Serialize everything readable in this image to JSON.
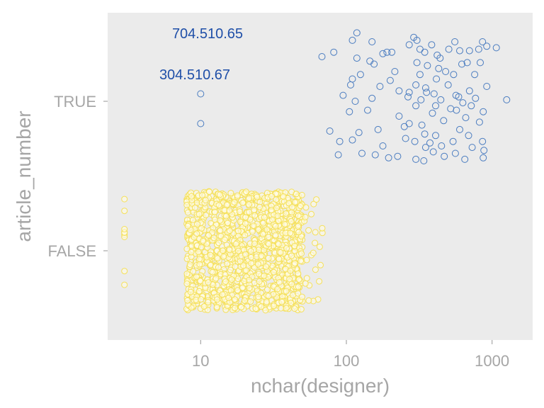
{
  "chart_data": {
    "type": "scatter",
    "xlabel": "nchar(designer)",
    "ylabel": "article_number",
    "x_scale": "log10",
    "xlim": [
      2.3,
      1900
    ],
    "x_ticks": [
      10,
      100,
      1000
    ],
    "x_tick_labels": [
      "10",
      "100",
      "1000"
    ],
    "categories": [
      "FALSE",
      "TRUE"
    ],
    "y_tick_labels": [
      "FALSE",
      "TRUE"
    ],
    "grid": false,
    "legend": "none",
    "colors": {
      "panel": "#ebebeb",
      "true_points": "#4a7cc0",
      "false_points": "#f5e05a",
      "annotation": "#1f4fa8",
      "axis_text": "#a6a6a6"
    },
    "annotations": [
      {
        "text": "704.510.65",
        "x": 10,
        "category": "TRUE"
      },
      {
        "text": "304.510.67",
        "x": 10,
        "category": "TRUE"
      }
    ],
    "series": [
      {
        "category": "TRUE",
        "points": [
          [
            10,
            0.05
          ],
          [
            10,
            -0.15
          ],
          [
            68,
            0.3
          ],
          [
            82,
            0.33
          ],
          [
            110,
            0.41
          ],
          [
            118,
            0.46
          ],
          [
            150,
            0.4
          ],
          [
            178,
            0.32
          ],
          [
            190,
            0.33
          ],
          [
            205,
            0.33
          ],
          [
            270,
            0.38
          ],
          [
            290,
            0.43
          ],
          [
            305,
            0.41
          ],
          [
            320,
            0.35
          ],
          [
            345,
            0.33
          ],
          [
            385,
            0.38
          ],
          [
            420,
            0.31
          ],
          [
            505,
            0.35
          ],
          [
            555,
            0.4
          ],
          [
            600,
            0.34
          ],
          [
            700,
            0.34
          ],
          [
            810,
            0.35
          ],
          [
            860,
            0.4
          ],
          [
            920,
            0.37
          ],
          [
            1070,
            0.36
          ],
          [
            118,
            0.29
          ],
          [
            145,
            0.27
          ],
          [
            215,
            0.2
          ],
          [
            320,
            0.18
          ],
          [
            305,
            0.26
          ],
          [
            360,
            0.24
          ],
          [
            430,
            0.22
          ],
          [
            440,
            0.29
          ],
          [
            480,
            0.2
          ],
          [
            545,
            0.18
          ],
          [
            620,
            0.25
          ],
          [
            675,
            0.26
          ],
          [
            760,
            0.18
          ],
          [
            830,
            0.26
          ],
          [
            110,
            0.15
          ],
          [
            125,
            0.18
          ],
          [
            170,
            0.1
          ],
          [
            200,
            0.14
          ],
          [
            230,
            0.07
          ],
          [
            270,
            0.06
          ],
          [
            300,
            0.11
          ],
          [
            355,
            0.06
          ],
          [
            400,
            0.05
          ],
          [
            500,
            0.11
          ],
          [
            590,
            0.03
          ],
          [
            700,
            0.07
          ],
          [
            770,
            0.02
          ],
          [
            920,
            0.1
          ],
          [
            1260,
            0.01
          ],
          [
            95,
            0.04
          ],
          [
            107,
            0.11
          ],
          [
            115,
            0.0
          ],
          [
            150,
            0.02
          ],
          [
            265,
            0.03
          ],
          [
            325,
            0.01
          ],
          [
            410,
            -0.03
          ],
          [
            445,
            0.01
          ],
          [
            520,
            -0.05
          ],
          [
            565,
            0.04
          ],
          [
            630,
            -0.01
          ],
          [
            105,
            -0.07
          ],
          [
            140,
            -0.06
          ],
          [
            230,
            -0.1
          ],
          [
            270,
            -0.15
          ],
          [
            330,
            -0.16
          ],
          [
            390,
            -0.08
          ],
          [
            465,
            -0.13
          ],
          [
            570,
            -0.06
          ],
          [
            660,
            -0.11
          ],
          [
            720,
            -0.03
          ],
          [
            820,
            -0.14
          ],
          [
            870,
            -0.07
          ],
          [
            77,
            -0.2
          ],
          [
            90,
            -0.27
          ],
          [
            110,
            -0.26
          ],
          [
            122,
            -0.21
          ],
          [
            165,
            -0.19
          ],
          [
            178,
            -0.3
          ],
          [
            255,
            -0.25
          ],
          [
            295,
            -0.27
          ],
          [
            350,
            -0.31
          ],
          [
            375,
            -0.28
          ],
          [
            410,
            -0.23
          ],
          [
            450,
            -0.3
          ],
          [
            540,
            -0.27
          ],
          [
            600,
            -0.19
          ],
          [
            690,
            -0.23
          ],
          [
            730,
            -0.31
          ],
          [
            860,
            -0.27
          ],
          [
            880,
            -0.33
          ],
          [
            88,
            -0.36
          ],
          [
            128,
            -0.35
          ],
          [
            158,
            -0.36
          ],
          [
            195,
            -0.38
          ],
          [
            225,
            -0.37
          ],
          [
            300,
            -0.39
          ],
          [
            340,
            -0.4
          ],
          [
            395,
            -0.34
          ],
          [
            470,
            -0.37
          ],
          [
            560,
            -0.35
          ],
          [
            650,
            -0.39
          ],
          [
            870,
            -0.38
          ],
          [
            250,
            -0.17
          ],
          [
            345,
            -0.22
          ],
          [
            415,
            0.15
          ],
          [
            155,
            0.25
          ],
          [
            350,
            0.09
          ],
          [
            300,
            -0.03
          ]
        ]
      },
      {
        "category": "FALSE",
        "x_min": 3,
        "x_max": 70,
        "jitter": 0.4,
        "approximate_count": 1500
      }
    ]
  }
}
